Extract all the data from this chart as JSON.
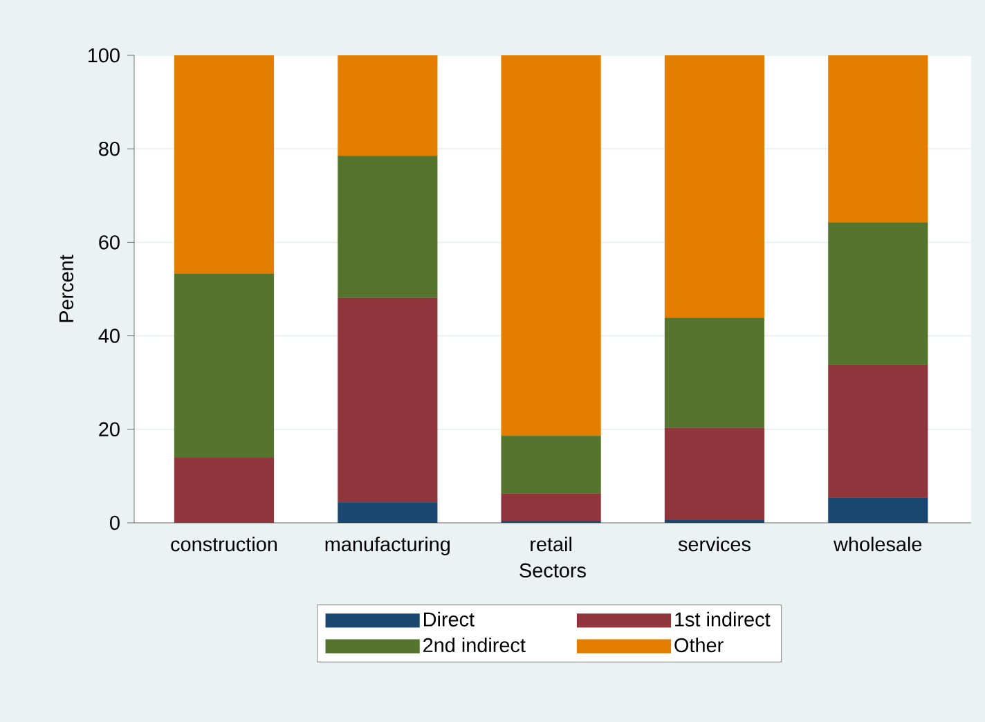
{
  "chart_data": {
    "type": "bar",
    "stacked": true,
    "xlabel": "Sectors",
    "ylabel": "Percent",
    "categories": [
      "construction",
      "manufacturing",
      "retail",
      "services",
      "wholesale"
    ],
    "series": [
      {
        "name": "Direct",
        "color": "#1a476f",
        "values": [
          0,
          4.4,
          0.3,
          0.6,
          5.4
        ]
      },
      {
        "name": "1st indirect",
        "color": "#90353b",
        "values": [
          13.9,
          43.7,
          6.0,
          19.7,
          28.4
        ]
      },
      {
        "name": "2nd indirect",
        "color": "#55752f",
        "values": [
          39.4,
          30.4,
          12.3,
          23.5,
          30.4
        ]
      },
      {
        "name": "Other",
        "color": "#e37e00",
        "values": [
          46.7,
          21.5,
          81.4,
          56.2,
          35.8
        ]
      }
    ],
    "ylim": [
      0,
      100
    ],
    "yticks": [
      0,
      20,
      40,
      60,
      80,
      100
    ],
    "grid": "y",
    "legend": "bottom"
  }
}
